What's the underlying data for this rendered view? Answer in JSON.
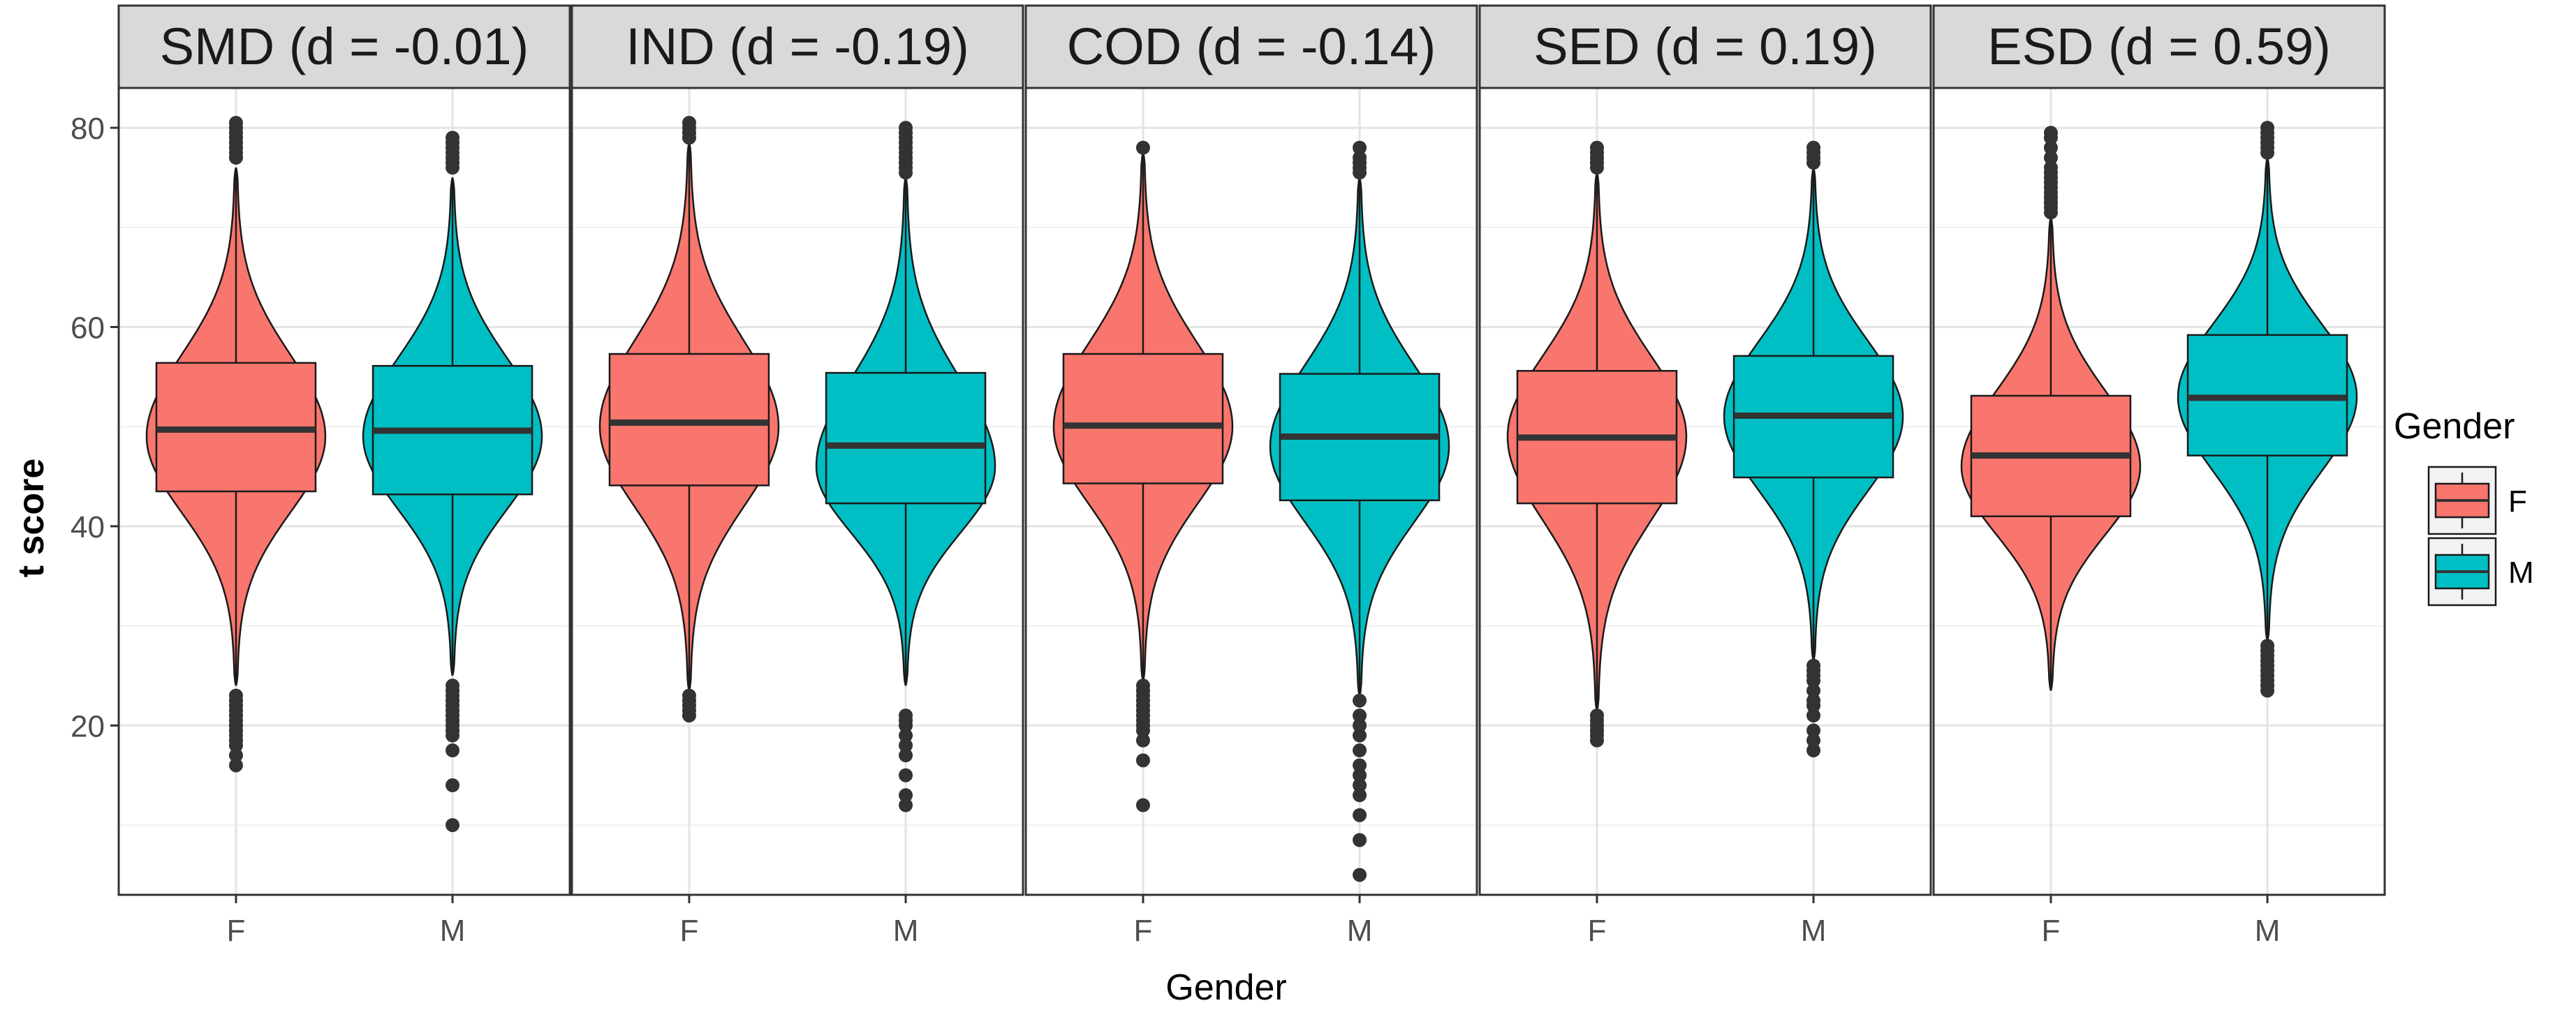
{
  "chart_data": {
    "type": "violin+box",
    "title": "",
    "xlabel": "Gender",
    "ylabel": "t score",
    "ylim": [
      3,
      84
    ],
    "y_ticks": [
      20,
      40,
      60,
      80
    ],
    "categories": [
      "F",
      "M"
    ],
    "legend": {
      "title": "Gender",
      "position": "right",
      "entries": [
        {
          "label": "F",
          "color": "#F8766D"
        },
        {
          "label": "M",
          "color": "#00BFC4"
        }
      ]
    },
    "panels": [
      {
        "label": "SMD (d = -0.01)",
        "groups": [
          {
            "gender": "F",
            "min": 24,
            "q1": 43.5,
            "median": 49.7,
            "q3": 56.4,
            "max": 76,
            "mode": 49,
            "outliers_high": [
              77,
              77.5,
              78,
              78.5,
              79,
              79.5,
              80,
              80.5
            ],
            "outliers_low": [
              16,
              17,
              18,
              18.5,
              19,
              19.5,
              20,
              20.5,
              21,
              21.5,
              22,
              22.5,
              23
            ]
          },
          {
            "gender": "M",
            "min": 25,
            "q1": 43.2,
            "median": 49.6,
            "q3": 56.1,
            "max": 75,
            "mode": 49,
            "outliers_high": [
              76,
              76.5,
              77,
              77.5,
              78,
              78.5,
              79
            ],
            "outliers_low": [
              10,
              14,
              17.5,
              19,
              19.5,
              20,
              20.5,
              21,
              21.5,
              22,
              22.5,
              23,
              23.5,
              24
            ]
          }
        ]
      },
      {
        "label": "IND (d = -0.19)",
        "groups": [
          {
            "gender": "F",
            "min": 23.5,
            "q1": 44.1,
            "median": 50.4,
            "q3": 57.3,
            "max": 78.5,
            "mode": 50,
            "outliers_high": [
              79,
              79.5,
              80,
              80.5
            ],
            "outliers_low": [
              21,
              21.5,
              22,
              22.5,
              23
            ]
          },
          {
            "gender": "M",
            "min": 24,
            "q1": 42.3,
            "median": 48.1,
            "q3": 55.4,
            "max": 75,
            "mode": 46,
            "outliers_high": [
              75.5,
              76,
              76.5,
              77,
              77.5,
              78,
              78.5,
              79,
              79.5,
              80
            ],
            "outliers_low": [
              12,
              13,
              15,
              17,
              18,
              19,
              20,
              20.5,
              21
            ]
          }
        ]
      },
      {
        "label": "COD (d = -0.14)",
        "groups": [
          {
            "gender": "F",
            "min": 24.5,
            "q1": 44.3,
            "median": 50.1,
            "q3": 57.3,
            "max": 77.5,
            "mode": 50,
            "outliers_high": [
              78
            ],
            "outliers_low": [
              12,
              16.5,
              18.5,
              19.5,
              20,
              20.5,
              21,
              21.5,
              22,
              22.5,
              23,
              23.5,
              24
            ]
          },
          {
            "gender": "M",
            "min": 23,
            "q1": 42.6,
            "median": 49,
            "q3": 55.3,
            "max": 75,
            "mode": 48,
            "outliers_high": [
              75.5,
              76,
              76.5,
              77,
              78
            ],
            "outliers_low": [
              5,
              8.5,
              11,
              13,
              14,
              15,
              16,
              17.5,
              19,
              20,
              21,
              22.5
            ]
          }
        ]
      },
      {
        "label": "SED (d = 0.19)",
        "groups": [
          {
            "gender": "F",
            "min": 21.5,
            "q1": 42.3,
            "median": 48.9,
            "q3": 55.6,
            "max": 75.5,
            "mode": 49,
            "outliers_high": [
              76,
              76.5,
              77,
              77.5,
              78
            ],
            "outliers_low": [
              18.5,
              19,
              19.5,
              20,
              20.5,
              21
            ]
          },
          {
            "gender": "M",
            "min": 26.5,
            "q1": 44.9,
            "median": 51.1,
            "q3": 57.1,
            "max": 76,
            "mode": 51,
            "outliers_high": [
              76.5,
              77,
              77.5,
              78
            ],
            "outliers_low": [
              17.5,
              18.5,
              19.5,
              21,
              22,
              22.5,
              23.5,
              24.5,
              25,
              25.5,
              26
            ]
          }
        ]
      },
      {
        "label": "ESD (d = 0.59)",
        "groups": [
          {
            "gender": "F",
            "min": 23.5,
            "q1": 41,
            "median": 47.1,
            "q3": 53.1,
            "max": 71,
            "mode": 46,
            "outliers_high": [
              71.5,
              72,
              72.5,
              73,
              73.5,
              74,
              74.5,
              75,
              75.5,
              76,
              77,
              78,
              79,
              79.5
            ],
            "outliers_low": []
          },
          {
            "gender": "M",
            "min": 28.5,
            "q1": 47.1,
            "median": 52.9,
            "q3": 59.2,
            "max": 77,
            "mode": 53,
            "outliers_high": [
              77.5,
              78,
              78.5,
              79,
              79.5,
              80
            ],
            "outliers_low": [
              23.5,
              24,
              24.5,
              25,
              25.5,
              26,
              26.5,
              27,
              27.5,
              28
            ]
          }
        ]
      }
    ]
  }
}
